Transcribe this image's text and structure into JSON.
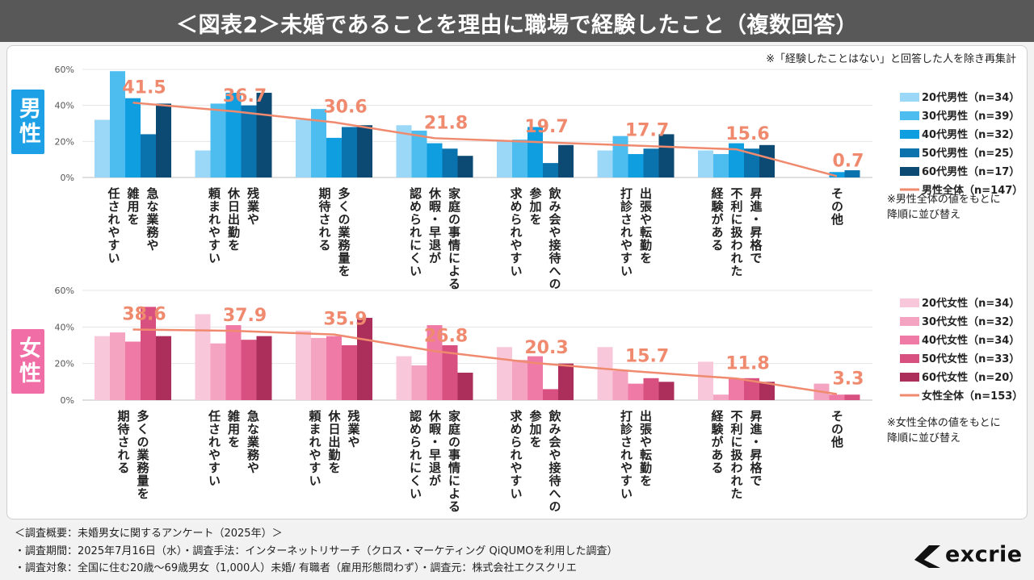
{
  "header": {
    "title": "＜図表2＞未婚であることを理由に職場で経験したこと（複数回答）"
  },
  "note_top": "※「経験したことはない」と回答した人を除き再集計",
  "badges": {
    "male": "男性",
    "female": "女性"
  },
  "notes": {
    "male_line1": "※男性全体の値をもとに",
    "male_line2": "降順に並び替え",
    "female_line1": "※女性全体の値をもとに",
    "female_line2": "降順に並び替え"
  },
  "footer": {
    "line1": "＜調査概要：未婚男女に関するアンケート（2025年）＞",
    "line2": "・調査期間：2025年7月16日（水）・調査手法：インターネットリサーチ（クロス・マーケティング QiQUMOを利用した調査）",
    "line3": "・調査対象：全国に住む20歳～69歳男女（1,000人）未婚/ 有職者（雇用形態問わず）・調査元：株式会社エクスクリエ"
  },
  "logo": {
    "text": "excrie"
  },
  "chart_data": [
    {
      "type": "bar",
      "name": "男性",
      "ylim": [
        0,
        60
      ],
      "yticks": [
        "0%",
        "20%",
        "40%",
        "60%"
      ],
      "categories": [
        [
          "急な業務や",
          "雑用を",
          "任されやすい"
        ],
        [
          "残業や",
          "休日出勤を",
          "頼まれやすい"
        ],
        [
          "多くの業務量を",
          "期待される"
        ],
        [
          "家庭の事情による",
          "休暇・早退が",
          "認められにくい"
        ],
        [
          "飲み会や接待への",
          "参加を",
          "求められやすい"
        ],
        [
          "出張や転勤を",
          "打診されやすい"
        ],
        [
          "昇進・昇格で",
          "不利に扱われた",
          "経験がある"
        ],
        [
          "その他"
        ]
      ],
      "series": [
        {
          "name": "20代男性（n=34）",
          "color": "#9bd8f7",
          "values": [
            32,
            15,
            32,
            29,
            20,
            15,
            15,
            0
          ]
        },
        {
          "name": "30代男性（n=39）",
          "color": "#4dbcee",
          "values": [
            59,
            41,
            38,
            26,
            21,
            23,
            13,
            0
          ]
        },
        {
          "name": "40代男性（n=32）",
          "color": "#0f9ee0",
          "values": [
            44,
            47,
            22,
            19,
            28,
            13,
            19,
            3
          ]
        },
        {
          "name": "50代男性（n=25）",
          "color": "#0a72ad",
          "values": [
            24,
            40,
            28,
            16,
            8,
            16,
            16,
            4
          ]
        },
        {
          "name": "60代男性（n=17）",
          "color": "#0c4a73",
          "values": [
            41,
            47,
            29,
            12,
            18,
            24,
            18,
            0
          ]
        }
      ],
      "total": {
        "name": "男性全体（n=147）",
        "color": "#f08a6f",
        "values": [
          41.5,
          36.7,
          30.6,
          21.8,
          19.7,
          17.7,
          15.6,
          0.7
        ],
        "labels": [
          "41.5",
          "36.7",
          "30.6",
          "21.8",
          "19.7",
          "17.7",
          "15.6",
          "0.7"
        ]
      }
    },
    {
      "type": "bar",
      "name": "女性",
      "ylim": [
        0,
        60
      ],
      "yticks": [
        "0%",
        "20%",
        "40%",
        "60%"
      ],
      "categories": [
        [
          "多くの業務量を",
          "期待される"
        ],
        [
          "急な業務や",
          "雑用を",
          "任されやすい"
        ],
        [
          "残業や",
          "休日出勤を",
          "頼まれやすい"
        ],
        [
          "家庭の事情による",
          "休暇・早退が",
          "認められにくい"
        ],
        [
          "飲み会や接待への",
          "参加を",
          "求められやすい"
        ],
        [
          "出張や転勤を",
          "打診されやすい"
        ],
        [
          "昇進・昇格で",
          "不利に扱われた",
          "経験がある"
        ],
        [
          "その他"
        ]
      ],
      "series": [
        {
          "name": "20代女性（n=34）",
          "color": "#f9c7da",
          "values": [
            35,
            47,
            38,
            24,
            29,
            29,
            21,
            0
          ]
        },
        {
          "name": "30代女性（n=32）",
          "color": "#f4a3c0",
          "values": [
            37,
            31,
            34,
            19,
            22,
            16,
            3,
            9
          ]
        },
        {
          "name": "40代女性（n=34）",
          "color": "#ef7aa6",
          "values": [
            32,
            41,
            35,
            41,
            24,
            9,
            12,
            3
          ]
        },
        {
          "name": "50代女性（n=33）",
          "color": "#d8507f",
          "values": [
            51,
            33,
            30,
            30,
            6,
            12,
            12,
            3
          ]
        },
        {
          "name": "60代女性（n=20）",
          "color": "#ab2f5a",
          "values": [
            35,
            35,
            45,
            15,
            20,
            10,
            10,
            0
          ]
        }
      ],
      "total": {
        "name": "女性全体（n=153）",
        "color": "#f08a6f",
        "values": [
          38.6,
          37.9,
          35.9,
          26.8,
          20.3,
          15.7,
          11.8,
          3.3
        ],
        "labels": [
          "38.6",
          "37.9",
          "35.9",
          "26.8",
          "20.3",
          "15.7",
          "11.8",
          "3.3"
        ]
      }
    }
  ]
}
